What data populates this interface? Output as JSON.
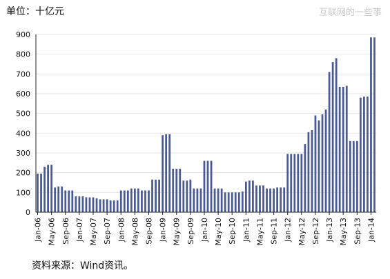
{
  "header": {
    "unit_label": "单位：十亿元",
    "watermark": "互联网的一些事"
  },
  "footer": {
    "source_note": "资料来源：Wind资讯。"
  },
  "chart_data": {
    "type": "bar",
    "ylim": [
      0,
      900
    ],
    "yticks": [
      0,
      100,
      200,
      300,
      400,
      500,
      600,
      700,
      800,
      900
    ],
    "xtick_labels": [
      "Jan-06",
      "May-06",
      "Sep-06",
      "Jan-07",
      "May-07",
      "Sep-07",
      "Jan-08",
      "May-08",
      "Sep-08",
      "Jan-09",
      "May-09",
      "Sep-09",
      "Jan-10",
      "May-10",
      "Sep-10",
      "Jan-11",
      "May-11",
      "Sep-11",
      "Jan-12",
      "May-12",
      "Sep-12",
      "Jan-13",
      "May-13",
      "Sep-13",
      "Jan-14"
    ],
    "grid": "horizontal",
    "color": "#4a5a96",
    "categories": [
      "Jan-06",
      "Feb-06",
      "Mar-06",
      "Apr-06",
      "May-06",
      "Jun-06",
      "Jul-06",
      "Aug-06",
      "Sep-06",
      "Oct-06",
      "Nov-06",
      "Dec-06",
      "Jan-07",
      "Feb-07",
      "Mar-07",
      "Apr-07",
      "May-07",
      "Jun-07",
      "Jul-07",
      "Aug-07",
      "Sep-07",
      "Oct-07",
      "Nov-07",
      "Dec-07",
      "Jan-08",
      "Feb-08",
      "Mar-08",
      "Apr-08",
      "May-08",
      "Jun-08",
      "Jul-08",
      "Aug-08",
      "Sep-08",
      "Oct-08",
      "Nov-08",
      "Dec-08",
      "Jan-09",
      "Feb-09",
      "Mar-09",
      "Apr-09",
      "May-09",
      "Jun-09",
      "Jul-09",
      "Aug-09",
      "Sep-09",
      "Oct-09",
      "Nov-09",
      "Dec-09",
      "Jan-10",
      "Feb-10",
      "Mar-10",
      "Apr-10",
      "May-10",
      "Jun-10",
      "Jul-10",
      "Aug-10",
      "Sep-10",
      "Oct-10",
      "Nov-10",
      "Dec-10",
      "Jan-11",
      "Feb-11",
      "Mar-11",
      "Apr-11",
      "May-11",
      "Jun-11",
      "Jul-11",
      "Aug-11",
      "Sep-11",
      "Oct-11",
      "Nov-11",
      "Dec-11",
      "Jan-12",
      "Feb-12",
      "Mar-12",
      "Apr-12",
      "May-12",
      "Jun-12",
      "Jul-12",
      "Aug-12",
      "Sep-12",
      "Oct-12",
      "Nov-12",
      "Dec-12",
      "Jan-13",
      "Feb-13",
      "Mar-13",
      "Apr-13",
      "May-13",
      "Jun-13",
      "Jul-13",
      "Aug-13",
      "Sep-13",
      "Oct-13",
      "Nov-13",
      "Dec-13",
      "Jan-14",
      "Feb-14"
    ],
    "values": [
      195,
      195,
      230,
      240,
      240,
      125,
      130,
      130,
      110,
      110,
      110,
      80,
      80,
      80,
      75,
      75,
      75,
      70,
      65,
      65,
      65,
      60,
      60,
      60,
      110,
      110,
      110,
      120,
      120,
      120,
      110,
      110,
      110,
      165,
      165,
      165,
      390,
      395,
      395,
      220,
      220,
      220,
      160,
      160,
      165,
      120,
      120,
      120,
      260,
      260,
      260,
      120,
      120,
      120,
      100,
      100,
      100,
      100,
      100,
      105,
      155,
      160,
      160,
      135,
      135,
      135,
      120,
      120,
      120,
      125,
      125,
      125,
      295,
      295,
      295,
      295,
      295,
      345,
      405,
      415,
      490,
      465,
      495,
      520,
      710,
      760,
      780,
      635,
      635,
      640,
      360,
      360,
      360,
      580,
      585,
      585,
      885,
      885
    ]
  }
}
